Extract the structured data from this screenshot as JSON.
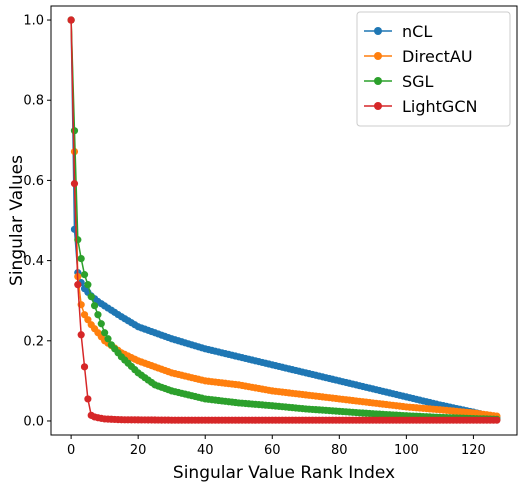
{
  "chart_data": {
    "type": "line",
    "title": "",
    "xlabel": "Singular Value Rank Index",
    "ylabel": "Singular Values",
    "xlim": [
      -6,
      133
    ],
    "ylim": [
      -0.035,
      1.035
    ],
    "xticks": [
      0,
      20,
      40,
      60,
      80,
      100,
      120
    ],
    "yticks": [
      0.0,
      0.2,
      0.4,
      0.6,
      0.8,
      1.0
    ],
    "xtick_labels": [
      "0",
      "20",
      "40",
      "60",
      "80",
      "100",
      "120"
    ],
    "ytick_labels": [
      "0.0",
      "0.2",
      "0.4",
      "0.6",
      "0.8",
      "1.0"
    ],
    "grid": false,
    "legend_position": "top-right",
    "x_count": 128,
    "series": [
      {
        "name": "nCL",
        "color": "#1f77b4",
        "anchors": [
          [
            0,
            1.0
          ],
          [
            1,
            0.478
          ],
          [
            2,
            0.37
          ],
          [
            3,
            0.345
          ],
          [
            4,
            0.33
          ],
          [
            6,
            0.312
          ],
          [
            8,
            0.298
          ],
          [
            10,
            0.287
          ],
          [
            15,
            0.26
          ],
          [
            20,
            0.235
          ],
          [
            30,
            0.205
          ],
          [
            40,
            0.18
          ],
          [
            50,
            0.16
          ],
          [
            60,
            0.14
          ],
          [
            70,
            0.12
          ],
          [
            80,
            0.1
          ],
          [
            90,
            0.08
          ],
          [
            100,
            0.06
          ],
          [
            110,
            0.04
          ],
          [
            120,
            0.022
          ],
          [
            127,
            0.008
          ]
        ]
      },
      {
        "name": "DirectAU",
        "color": "#ff7f0e",
        "anchors": [
          [
            0,
            1.0
          ],
          [
            1,
            0.672
          ],
          [
            2,
            0.36
          ],
          [
            3,
            0.29
          ],
          [
            4,
            0.265
          ],
          [
            6,
            0.24
          ],
          [
            8,
            0.22
          ],
          [
            10,
            0.2
          ],
          [
            15,
            0.17
          ],
          [
            20,
            0.15
          ],
          [
            30,
            0.12
          ],
          [
            40,
            0.1
          ],
          [
            50,
            0.09
          ],
          [
            60,
            0.075
          ],
          [
            70,
            0.065
          ],
          [
            80,
            0.055
          ],
          [
            90,
            0.045
          ],
          [
            100,
            0.035
          ],
          [
            110,
            0.028
          ],
          [
            120,
            0.02
          ],
          [
            127,
            0.012
          ]
        ]
      },
      {
        "name": "SGL",
        "color": "#2ca02c",
        "anchors": [
          [
            0,
            1.0
          ],
          [
            1,
            0.724
          ],
          [
            2,
            0.452
          ],
          [
            3,
            0.405
          ],
          [
            4,
            0.365
          ],
          [
            5,
            0.34
          ],
          [
            6,
            0.31
          ],
          [
            8,
            0.265
          ],
          [
            10,
            0.22
          ],
          [
            12,
            0.19
          ],
          [
            15,
            0.16
          ],
          [
            20,
            0.12
          ],
          [
            25,
            0.09
          ],
          [
            30,
            0.075
          ],
          [
            40,
            0.055
          ],
          [
            50,
            0.045
          ],
          [
            60,
            0.038
          ],
          [
            70,
            0.03
          ],
          [
            80,
            0.024
          ],
          [
            90,
            0.018
          ],
          [
            100,
            0.013
          ],
          [
            110,
            0.009
          ],
          [
            120,
            0.006
          ],
          [
            127,
            0.004
          ]
        ]
      },
      {
        "name": "LightGCN",
        "color": "#d62728",
        "anchors": [
          [
            0,
            1.0
          ],
          [
            1,
            0.592
          ],
          [
            2,
            0.34
          ],
          [
            3,
            0.215
          ],
          [
            4,
            0.135
          ],
          [
            5,
            0.055
          ],
          [
            6,
            0.014
          ],
          [
            7,
            0.01
          ],
          [
            8,
            0.008
          ],
          [
            10,
            0.005
          ],
          [
            15,
            0.003
          ],
          [
            30,
            0.002
          ],
          [
            60,
            0.002
          ],
          [
            100,
            0.002
          ],
          [
            127,
            0.002
          ]
        ]
      }
    ]
  }
}
